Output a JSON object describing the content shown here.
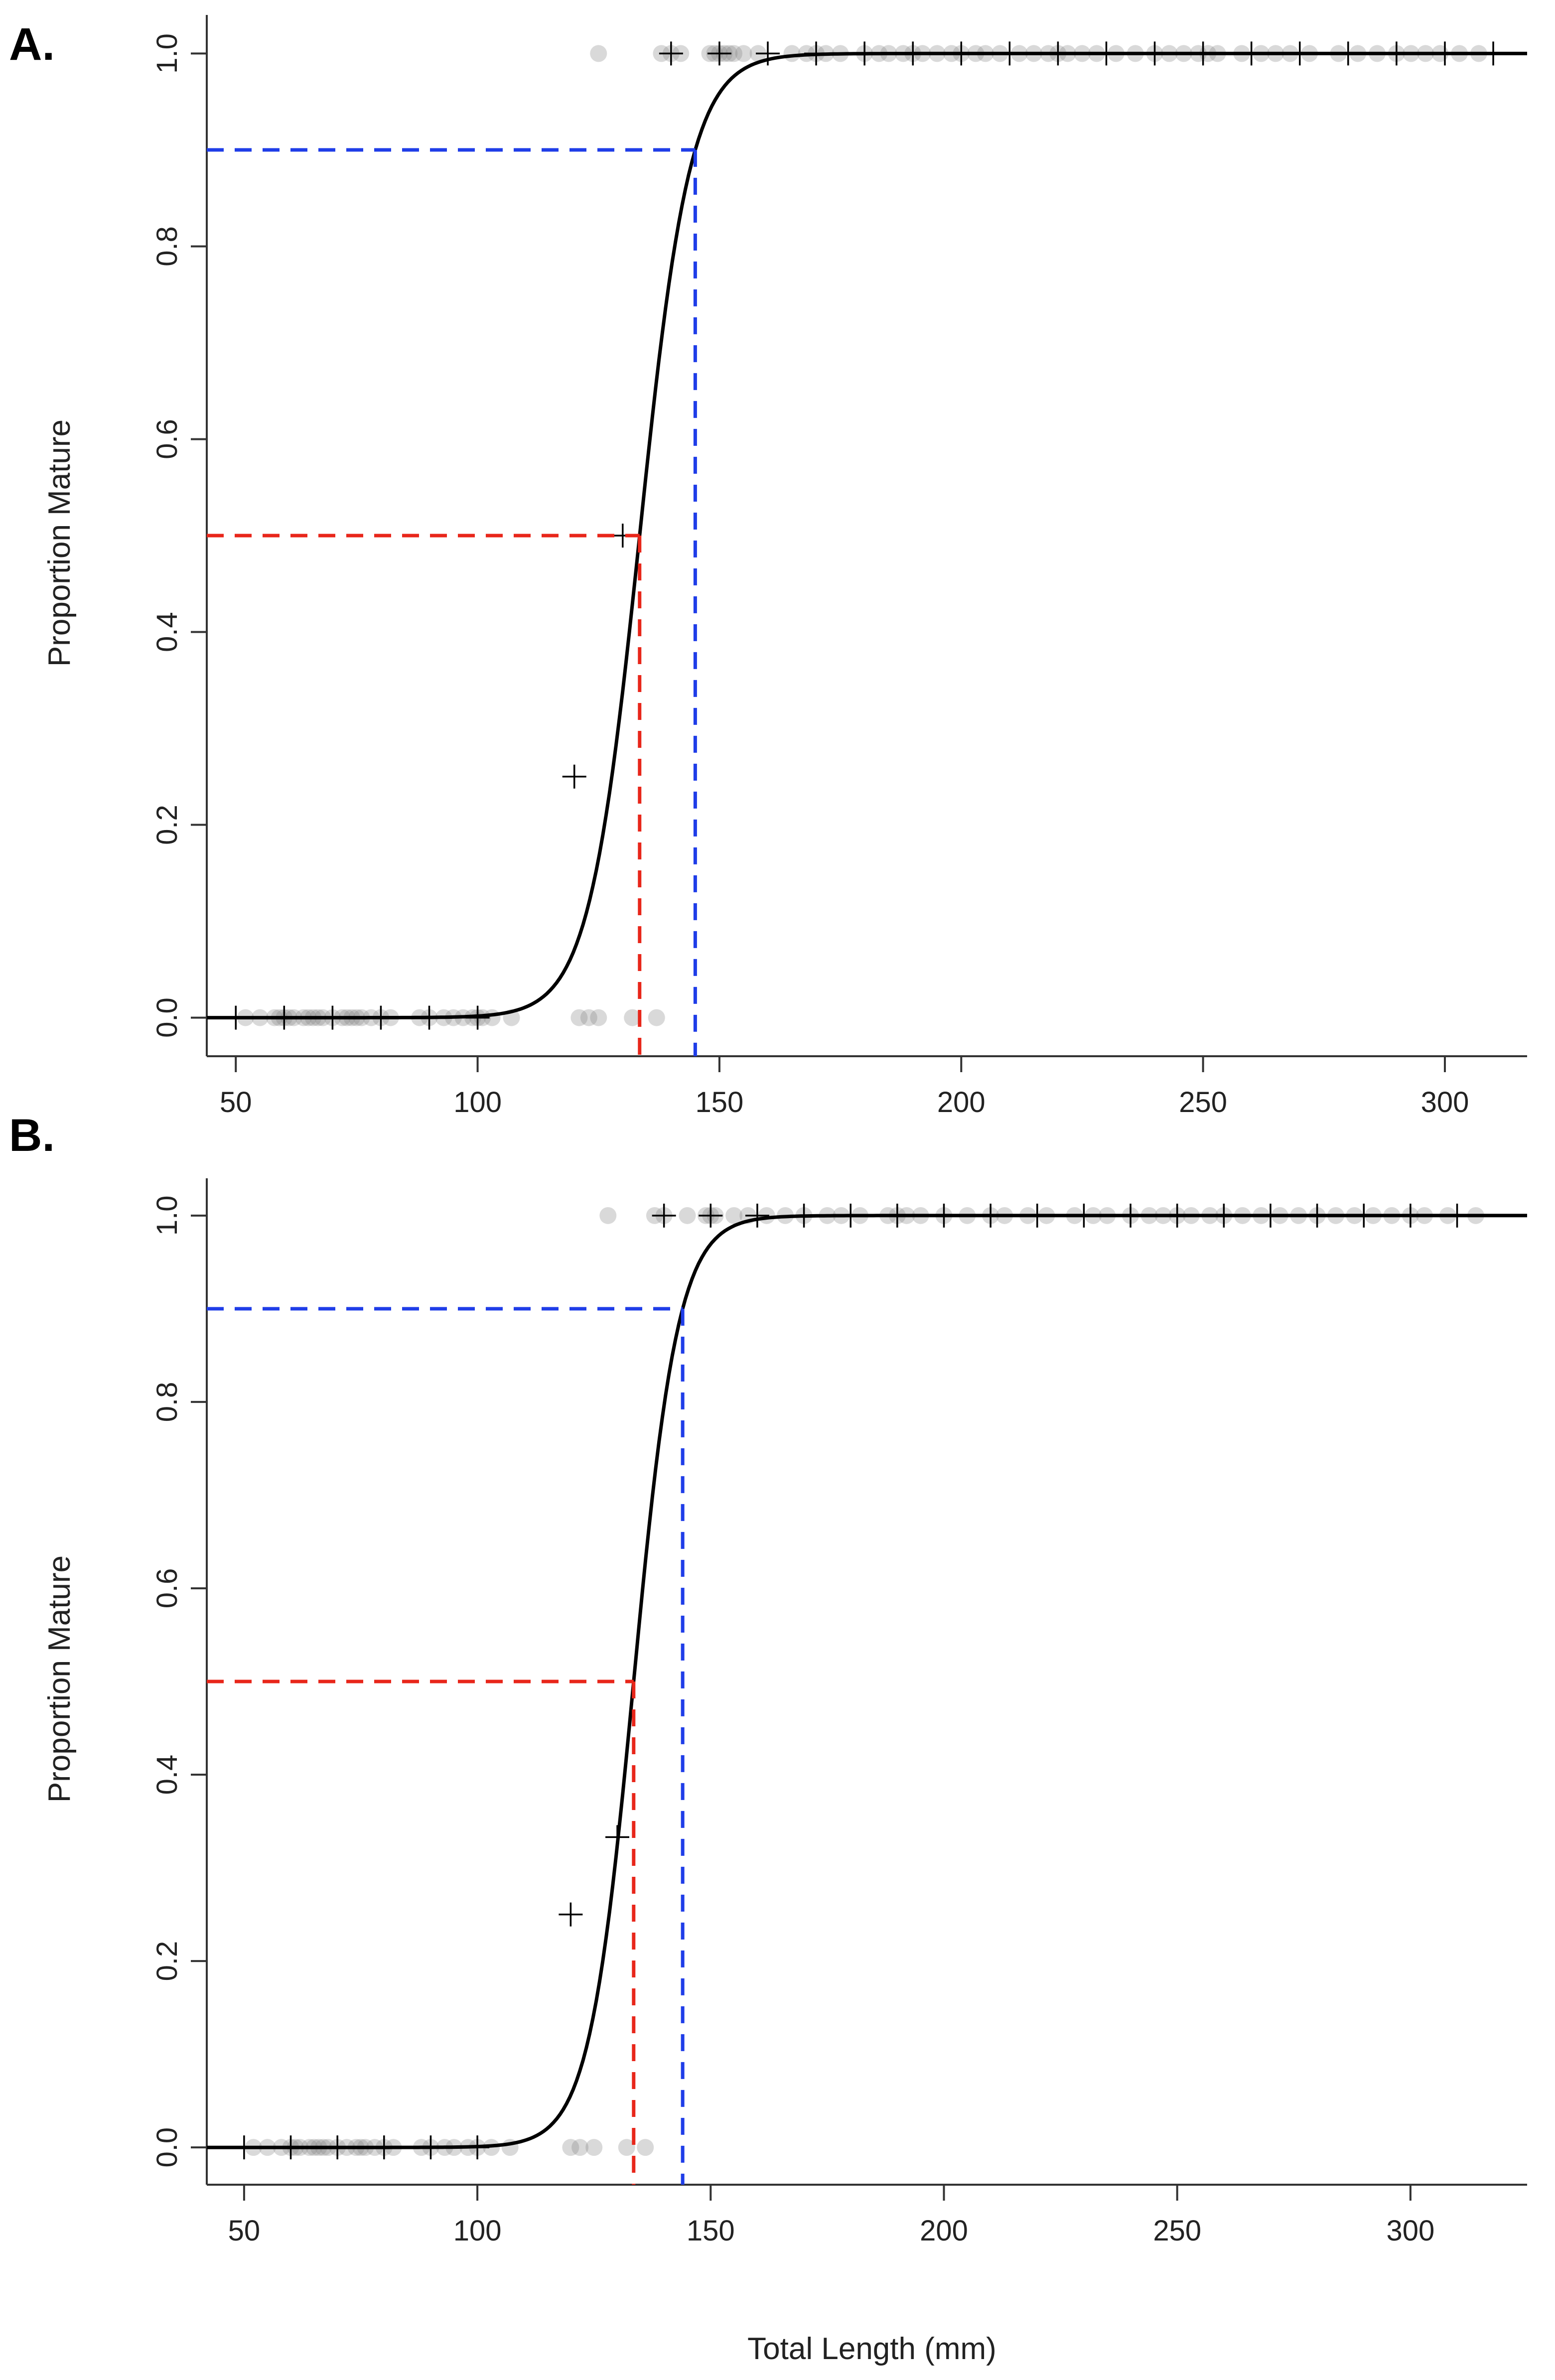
{
  "figure": {
    "shared_xlabel": "Total Length (mm)"
  },
  "chart_data": [
    {
      "panel_label": "A.",
      "type": "scatter",
      "title": "",
      "xlabel": "",
      "ylabel": "Proportion Mature",
      "xlim": [
        44,
        317
      ],
      "ylim": [
        -0.04,
        1.04
      ],
      "x_ticks": [
        50,
        100,
        150,
        200,
        250,
        300
      ],
      "y_ticks": [
        0.0,
        0.2,
        0.4,
        0.6,
        0.8,
        1.0
      ],
      "x_tick_labels": [
        "50",
        "100",
        "150",
        "200",
        "250",
        "300"
      ],
      "y_tick_labels": [
        "0.0",
        "0.2",
        "0.4",
        "0.6",
        "0.8",
        "1.0"
      ],
      "grid": false,
      "logistic_fit": {
        "name": "Fitted maturity ogive",
        "L50": 133.5,
        "L90": 145,
        "color": "#000000"
      },
      "reference_lines": [
        {
          "name": "L50",
          "x": 133.5,
          "y": 0.5,
          "color": "#e8261a"
        },
        {
          "name": "L90",
          "x": 145,
          "y": 0.9,
          "color": "#1f3de8"
        }
      ],
      "observations": {
        "immature_lengths": [
          52,
          55,
          58,
          59,
          60,
          61,
          62,
          64,
          65,
          66,
          67,
          68,
          70,
          72,
          73,
          74,
          75,
          76,
          78,
          80,
          82,
          88,
          90,
          93,
          95,
          97,
          99,
          100,
          101,
          103,
          107,
          121,
          123,
          125,
          132,
          137
        ],
        "mature_lengths": [
          125,
          138,
          140,
          142,
          148,
          149,
          150,
          151,
          152,
          153,
          155,
          158,
          165,
          168,
          170,
          172,
          175,
          180,
          183,
          185,
          188,
          190,
          192,
          195,
          198,
          200,
          203,
          205,
          208,
          212,
          215,
          218,
          220,
          222,
          225,
          228,
          232,
          236,
          240,
          243,
          246,
          249,
          251,
          253,
          258,
          262,
          265,
          268,
          272,
          278,
          282,
          286,
          290,
          293,
          296,
          299,
          303,
          307
        ]
      },
      "binned_proportions": {
        "x": [
          50,
          60,
          70,
          80,
          90,
          100,
          120,
          130,
          140,
          150,
          160,
          170,
          180,
          190,
          200,
          210,
          220,
          230,
          240,
          250,
          260,
          270,
          280,
          290,
          300,
          310
        ],
        "y": [
          0,
          0,
          0,
          0,
          0,
          0,
          0.25,
          0.5,
          1,
          1,
          1,
          1,
          1,
          1,
          1,
          1,
          1,
          1,
          1,
          1,
          1,
          1,
          1,
          1,
          1,
          1
        ]
      }
    },
    {
      "panel_label": "B.",
      "type": "scatter",
      "title": "",
      "xlabel": "Total Length (mm)",
      "ylabel": "Proportion Mature",
      "xlim": [
        42,
        325
      ],
      "ylim": [
        -0.04,
        1.04
      ],
      "x_ticks": [
        50,
        100,
        150,
        200,
        250,
        300
      ],
      "y_ticks": [
        0.0,
        0.2,
        0.4,
        0.6,
        0.8,
        1.0
      ],
      "x_tick_labels": [
        "50",
        "100",
        "150",
        "200",
        "250",
        "300"
      ],
      "y_tick_labels": [
        "0.0",
        "0.2",
        "0.4",
        "0.6",
        "0.8",
        "1.0"
      ],
      "grid": false,
      "logistic_fit": {
        "name": "Fitted maturity ogive",
        "L50": 133.5,
        "L90": 144,
        "color": "#000000"
      },
      "reference_lines": [
        {
          "name": "L50",
          "x": 133.5,
          "y": 0.5,
          "color": "#e8261a"
        },
        {
          "name": "L90",
          "x": 144,
          "y": 0.9,
          "color": "#1f3de8"
        }
      ],
      "observations": {
        "immature_lengths": [
          52,
          55,
          58,
          60,
          61,
          62,
          64,
          65,
          66,
          67,
          68,
          70,
          72,
          74,
          75,
          76,
          78,
          80,
          82,
          88,
          90,
          93,
          95,
          98,
          100,
          103,
          107,
          120,
          122,
          125,
          132,
          136
        ],
        "mature_lengths": [
          128,
          138,
          140,
          145,
          149,
          150,
          151,
          155,
          158,
          162,
          166,
          170,
          175,
          178,
          182,
          188,
          190,
          192,
          195,
          200,
          205,
          210,
          213,
          218,
          222,
          228,
          232,
          235,
          240,
          244,
          247,
          250,
          253,
          257,
          260,
          264,
          268,
          272,
          276,
          280,
          284,
          288,
          292,
          296,
          300,
          303,
          308,
          314
        ]
      },
      "binned_proportions": {
        "x": [
          50,
          60,
          70,
          80,
          90,
          100,
          120,
          130,
          140,
          150,
          160,
          170,
          180,
          190,
          200,
          210,
          220,
          230,
          240,
          250,
          260,
          270,
          280,
          290,
          300,
          310
        ],
        "y": [
          0,
          0,
          0,
          0,
          0,
          0,
          0.25,
          0.333,
          1,
          1,
          1,
          1,
          1,
          1,
          1,
          1,
          1,
          1,
          1,
          1,
          1,
          1,
          1,
          1,
          1,
          1
        ]
      }
    }
  ]
}
